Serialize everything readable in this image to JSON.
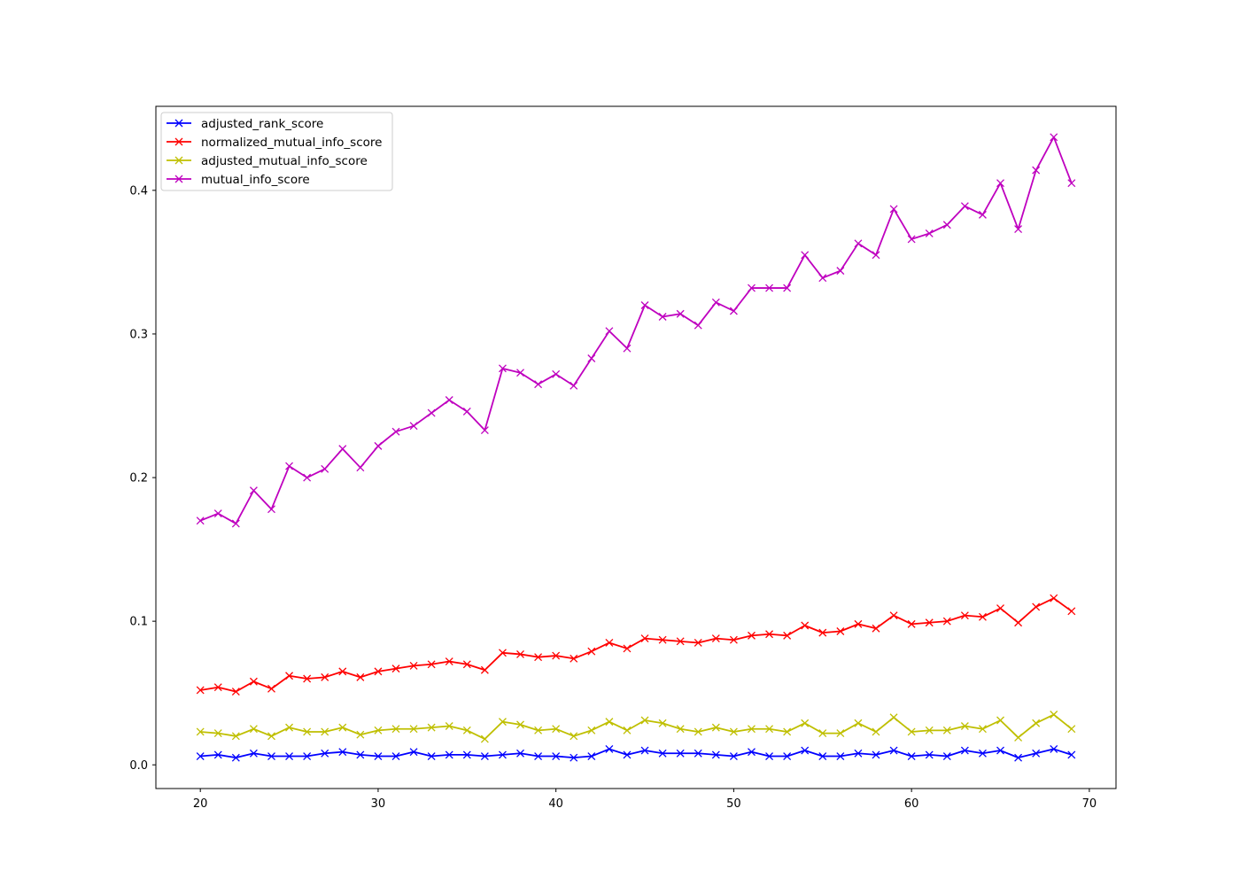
{
  "chart_data": {
    "type": "line",
    "title": "",
    "xlabel": "",
    "ylabel": "",
    "xlim": [
      17.5,
      71.5
    ],
    "ylim": [
      -0.0165,
      0.4585
    ],
    "xticks": [
      20,
      30,
      40,
      50,
      60,
      70
    ],
    "xtick_labels": [
      "20",
      "30",
      "40",
      "50",
      "60",
      "70"
    ],
    "yticks": [
      0.0,
      0.1,
      0.2,
      0.3,
      0.4
    ],
    "ytick_labels": [
      "0.0",
      "0.1",
      "0.2",
      "0.3",
      "0.4"
    ],
    "grid": false,
    "legend_position": "top-left",
    "marker": "x",
    "x": [
      20,
      21,
      22,
      23,
      24,
      25,
      26,
      27,
      28,
      29,
      30,
      31,
      32,
      33,
      34,
      35,
      36,
      37,
      38,
      39,
      40,
      41,
      42,
      43,
      44,
      45,
      46,
      47,
      48,
      49,
      50,
      51,
      52,
      53,
      54,
      55,
      56,
      57,
      58,
      59,
      60,
      61,
      62,
      63,
      64,
      65,
      66,
      67,
      68,
      69
    ],
    "series": [
      {
        "name": "adjusted_rank_score",
        "color": "#0000ff",
        "values": [
          0.006,
          0.007,
          0.005,
          0.008,
          0.006,
          0.006,
          0.006,
          0.008,
          0.009,
          0.007,
          0.006,
          0.006,
          0.009,
          0.006,
          0.007,
          0.007,
          0.006,
          0.007,
          0.008,
          0.006,
          0.006,
          0.005,
          0.006,
          0.011,
          0.007,
          0.01,
          0.008,
          0.008,
          0.008,
          0.007,
          0.006,
          0.009,
          0.006,
          0.006,
          0.01,
          0.006,
          0.006,
          0.008,
          0.007,
          0.01,
          0.006,
          0.007,
          0.006,
          0.01,
          0.008,
          0.01,
          0.005,
          0.008,
          0.011,
          0.007
        ]
      },
      {
        "name": "normalized_mutual_info_score",
        "color": "#ff0000",
        "values": [
          0.052,
          0.054,
          0.051,
          0.058,
          0.053,
          0.062,
          0.06,
          0.061,
          0.065,
          0.061,
          0.065,
          0.067,
          0.069,
          0.07,
          0.072,
          0.07,
          0.066,
          0.078,
          0.077,
          0.075,
          0.076,
          0.074,
          0.079,
          0.085,
          0.081,
          0.088,
          0.087,
          0.086,
          0.085,
          0.088,
          0.087,
          0.09,
          0.091,
          0.09,
          0.097,
          0.092,
          0.093,
          0.098,
          0.095,
          0.104,
          0.098,
          0.099,
          0.1,
          0.104,
          0.103,
          0.109,
          0.099,
          0.11,
          0.116,
          0.107
        ]
      },
      {
        "name": "adjusted_mutual_info_score",
        "color": "#bfbf00",
        "values": [
          0.023,
          0.022,
          0.02,
          0.025,
          0.02,
          0.026,
          0.023,
          0.023,
          0.026,
          0.021,
          0.024,
          0.025,
          0.025,
          0.026,
          0.027,
          0.024,
          0.018,
          0.03,
          0.028,
          0.024,
          0.025,
          0.02,
          0.024,
          0.03,
          0.024,
          0.031,
          0.029,
          0.025,
          0.023,
          0.026,
          0.023,
          0.025,
          0.025,
          0.023,
          0.029,
          0.022,
          0.022,
          0.029,
          0.023,
          0.033,
          0.023,
          0.024,
          0.024,
          0.027,
          0.025,
          0.031,
          0.019,
          0.029,
          0.035,
          0.025
        ]
      },
      {
        "name": "mutual_info_score",
        "color": "#bf00bf",
        "values": [
          0.17,
          0.175,
          0.168,
          0.191,
          0.178,
          0.208,
          0.2,
          0.206,
          0.22,
          0.207,
          0.222,
          0.232,
          0.236,
          0.245,
          0.254,
          0.246,
          0.233,
          0.276,
          0.273,
          0.265,
          0.272,
          0.264,
          0.283,
          0.302,
          0.29,
          0.32,
          0.312,
          0.314,
          0.306,
          0.322,
          0.316,
          0.332,
          0.332,
          0.332,
          0.355,
          0.339,
          0.344,
          0.363,
          0.355,
          0.387,
          0.366,
          0.37,
          0.376,
          0.389,
          0.383,
          0.405,
          0.373,
          0.414,
          0.437,
          0.405
        ]
      }
    ]
  }
}
